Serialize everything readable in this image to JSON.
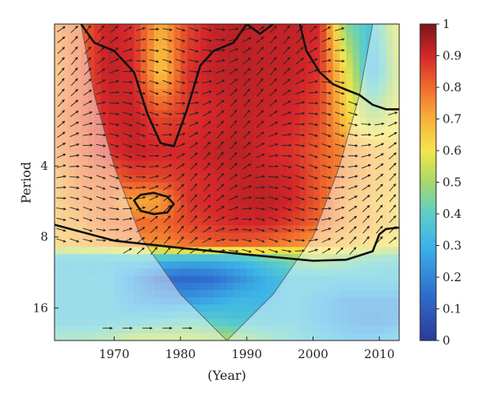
{
  "chart_data": {
    "type": "heatmap",
    "title": "",
    "xlabel": "(Year)",
    "ylabel": "Period",
    "x_range": [
      1961,
      2013
    ],
    "y_scale": "log2",
    "y_range": [
      1,
      22
    ],
    "x_ticks": [
      1970,
      1980,
      1990,
      2000,
      2010
    ],
    "x_tick_labels": [
      "1970",
      "1980",
      "1990",
      "2000",
      "2010"
    ],
    "y_ticks": [
      4,
      8,
      16
    ],
    "y_tick_labels": [
      "4",
      "8",
      "16"
    ],
    "colorbar": {
      "range": [
        0,
        1
      ],
      "ticks": [
        0,
        0.1,
        0.2,
        0.3,
        0.4,
        0.5,
        0.6,
        0.7,
        0.8,
        0.9,
        1
      ],
      "tick_labels": [
        "0",
        "0.1",
        "0.2",
        "0.3",
        "0.4",
        "0.5",
        "0.6",
        "0.7",
        "0.8",
        "0.9",
        "1"
      ],
      "colormap": "jet"
    },
    "years": [
      1961,
      1965,
      1969,
      1973,
      1977,
      1981,
      1985,
      1989,
      1993,
      1997,
      2001,
      2005,
      2009,
      2013
    ],
    "periods": [
      1,
      1.6,
      2.5,
      3.5,
      4.5,
      5.7,
      7,
      8.5,
      10,
      12,
      15,
      18,
      22
    ],
    "coherence": [
      [
        0.75,
        0.8,
        0.92,
        0.88,
        0.7,
        0.85,
        0.92,
        0.93,
        0.92,
        0.92,
        0.9,
        0.45,
        0.35,
        0.6
      ],
      [
        0.72,
        0.82,
        0.92,
        0.9,
        0.65,
        0.88,
        0.92,
        0.93,
        0.92,
        0.92,
        0.88,
        0.6,
        0.3,
        0.55
      ],
      [
        0.75,
        0.82,
        0.9,
        0.92,
        0.85,
        0.88,
        0.9,
        0.92,
        0.91,
        0.9,
        0.85,
        0.65,
        0.5,
        0.6
      ],
      [
        0.75,
        0.8,
        0.88,
        0.92,
        0.9,
        0.9,
        0.92,
        0.93,
        0.9,
        0.88,
        0.82,
        0.75,
        0.7,
        0.65
      ],
      [
        0.7,
        0.78,
        0.8,
        0.85,
        0.85,
        0.88,
        0.9,
        0.92,
        0.92,
        0.9,
        0.82,
        0.75,
        0.7,
        0.65
      ],
      [
        0.7,
        0.75,
        0.78,
        0.7,
        0.72,
        0.88,
        0.9,
        0.92,
        0.93,
        0.9,
        0.82,
        0.72,
        0.68,
        0.62
      ],
      [
        0.7,
        0.72,
        0.78,
        0.8,
        0.8,
        0.85,
        0.88,
        0.9,
        0.9,
        0.86,
        0.8,
        0.72,
        0.7,
        0.65
      ],
      [
        0.68,
        0.7,
        0.72,
        0.75,
        0.75,
        0.8,
        0.82,
        0.82,
        0.8,
        0.76,
        0.72,
        0.68,
        0.65,
        0.6
      ],
      [
        0.32,
        0.33,
        0.33,
        0.35,
        0.32,
        0.3,
        0.3,
        0.32,
        0.38,
        0.45,
        0.5,
        0.45,
        0.4,
        0.38
      ],
      [
        0.35,
        0.36,
        0.35,
        0.25,
        0.15,
        0.13,
        0.15,
        0.22,
        0.3,
        0.35,
        0.35,
        0.35,
        0.35,
        0.35
      ],
      [
        0.35,
        0.35,
        0.35,
        0.28,
        0.25,
        0.25,
        0.28,
        0.32,
        0.3,
        0.35,
        0.3,
        0.25,
        0.25,
        0.25
      ],
      [
        0.35,
        0.35,
        0.35,
        0.35,
        0.38,
        0.4,
        0.38,
        0.35,
        0.35,
        0.35,
        0.3,
        0.25,
        0.22,
        0.25
      ],
      [
        0.45,
        0.45,
        0.48,
        0.55,
        0.55,
        0.55,
        0.52,
        0.5,
        0.45,
        0.4,
        0.35,
        0.3,
        0.3,
        0.35
      ]
    ],
    "significance_contours": [
      {
        "name": "",
        "points": [
          [
            1965,
            1.0
          ],
          [
            1967,
            1.2
          ],
          [
            1970,
            1.3
          ],
          [
            1973,
            1.6
          ],
          [
            1975,
            2.4
          ],
          [
            1977,
            3.2
          ],
          [
            1979,
            3.3
          ],
          [
            1981,
            2.3
          ],
          [
            1983,
            1.5
          ],
          [
            1985,
            1.3
          ],
          [
            1988,
            1.2
          ],
          [
            1990,
            1.0
          ],
          [
            1992,
            1.1
          ],
          [
            1994,
            1.0
          ]
        ]
      },
      {
        "name": "",
        "points": [
          [
            1998,
            1.0
          ],
          [
            1999,
            1.3
          ],
          [
            2001,
            1.6
          ],
          [
            2003,
            1.8
          ],
          [
            2005,
            1.9
          ],
          [
            2007,
            2.0
          ],
          [
            2009,
            2.2
          ],
          [
            2011,
            2.3
          ],
          [
            2013,
            2.3
          ]
        ]
      },
      {
        "name": "",
        "points": [
          [
            1961,
            7.1
          ],
          [
            1970,
            8.3
          ],
          [
            1980,
            8.9
          ],
          [
            1990,
            9.5
          ],
          [
            2000,
            10.1
          ],
          [
            2005,
            10.0
          ],
          [
            2009,
            9.2
          ],
          [
            2010,
            7.8
          ],
          [
            2011,
            7.4
          ],
          [
            2013,
            7.3
          ]
        ]
      },
      {
        "name": "",
        "closed": true,
        "points": [
          [
            1973,
            5.6
          ],
          [
            1974,
            5.3
          ],
          [
            1976,
            5.2
          ],
          [
            1978,
            5.4
          ],
          [
            1979,
            5.8
          ],
          [
            1978,
            6.3
          ],
          [
            1976,
            6.4
          ],
          [
            1974,
            6.2
          ]
        ]
      }
    ],
    "cone_of_influence": {
      "apex": [
        1987,
        22
      ],
      "left": [
        [
          1965,
          1
        ],
        [
          1967,
          2
        ],
        [
          1970,
          4
        ],
        [
          1974,
          8
        ],
        [
          1980,
          14
        ],
        [
          1987,
          22
        ]
      ],
      "right": [
        [
          2009,
          1
        ],
        [
          2007,
          2
        ],
        [
          2004,
          4
        ],
        [
          2000,
          8
        ],
        [
          1994,
          14
        ],
        [
          1987,
          22
        ]
      ]
    },
    "phase_arrows_note": "Arrows show relative phase; mostly pointing right/down-right in high-coherence region"
  }
}
